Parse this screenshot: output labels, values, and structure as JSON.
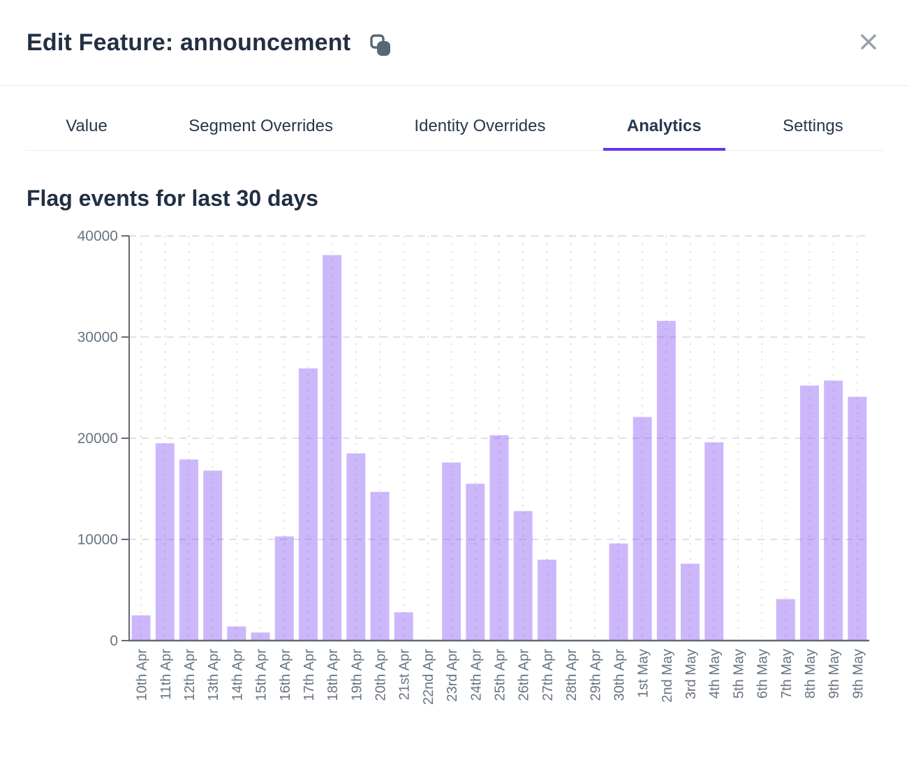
{
  "window": {
    "title": "Edit Feature: announcement"
  },
  "icons": {
    "copy": "copy-icon",
    "close": "close-icon"
  },
  "tabs": [
    {
      "label": "Value",
      "active": false
    },
    {
      "label": "Segment Overrides",
      "active": false
    },
    {
      "label": "Identity Overrides",
      "active": false
    },
    {
      "label": "Analytics",
      "active": true
    },
    {
      "label": "Settings",
      "active": false
    }
  ],
  "section_heading": "Flag events for last 30 days",
  "chart_data": {
    "type": "bar",
    "title": "Flag events for last 30 days",
    "categories": [
      "10th Apr",
      "11th Apr",
      "12th Apr",
      "13th Apr",
      "14th Apr",
      "15th Apr",
      "16th Apr",
      "17th Apr",
      "18th Apr",
      "19th Apr",
      "20th Apr",
      "21st Apr",
      "22nd Apr",
      "23rd Apr",
      "24th Apr",
      "25th Apr",
      "26th Apr",
      "27th Apr",
      "28th Apr",
      "29th Apr",
      "30th Apr",
      "1st May",
      "2nd May",
      "3rd May",
      "4th May",
      "5th May",
      "6th May",
      "7th May",
      "8th May",
      "9th May",
      "9th May"
    ],
    "values": [
      2500,
      19500,
      17900,
      16800,
      1400,
      800,
      10300,
      26900,
      38100,
      18500,
      14700,
      2800,
      0,
      17600,
      15500,
      20300,
      12800,
      8000,
      0,
      0,
      9600,
      22100,
      31600,
      7600,
      19600,
      0,
      0,
      4100,
      25200,
      25700,
      24100
    ],
    "ylim": [
      0,
      40000
    ],
    "yticks": [
      0,
      10000,
      20000,
      30000,
      40000
    ],
    "grid": true,
    "legend": false,
    "xlabel": "",
    "ylabel": ""
  },
  "colors": {
    "accent": "#6933ee",
    "bar": "#7b42f5",
    "bar_opacity": 0.38,
    "axis": "#606a75",
    "grid": "#e1e1e4",
    "tick_text": "#687482",
    "title_text": "#222f43",
    "icon_gray": "#99a3b1",
    "copy_icon": "#5b6673"
  }
}
